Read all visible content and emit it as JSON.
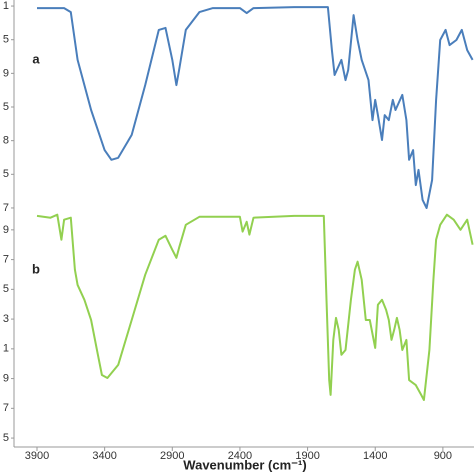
{
  "chart_data": [
    {
      "type": "line",
      "label": "a",
      "color": "#4a7ebb",
      "x": [
        3900,
        3700,
        3650,
        3600,
        3500,
        3400,
        3350,
        3300,
        3200,
        3100,
        3000,
        2950,
        2900,
        2870,
        2850,
        2800,
        2700,
        2600,
        2400,
        2350,
        2300,
        2000,
        1750,
        1720,
        1700,
        1650,
        1620,
        1600,
        1560,
        1530,
        1500,
        1450,
        1420,
        1400,
        1380,
        1350,
        1330,
        1300,
        1270,
        1250,
        1200,
        1170,
        1150,
        1120,
        1100,
        1080,
        1050,
        1020,
        980,
        950,
        920,
        880,
        850,
        800,
        760,
        720,
        680
      ],
      "values": [
        5.94,
        5.94,
        5.82,
        4.4,
        2.91,
        1.72,
        1.43,
        1.49,
        2.17,
        3.65,
        5.29,
        5.35,
        4.4,
        3.65,
        4.1,
        5.29,
        5.82,
        5.94,
        5.94,
        5.79,
        5.94,
        5.97,
        5.97,
        4.69,
        3.95,
        4.4,
        3.8,
        4.1,
        5.73,
        4.99,
        4.4,
        3.8,
        2.61,
        3.21,
        2.76,
        2.02,
        2.76,
        2.61,
        3.21,
        2.91,
        3.36,
        2.61,
        1.43,
        1.72,
        0.68,
        1.13,
        0.24,
        0,
        0.83,
        3.21,
        4.99,
        5.29,
        4.84,
        4.99,
        5.29,
        4.69,
        4.4
      ],
      "xlim": [
        4070,
        670
      ],
      "ylim": [
        -0.12,
        6.15
      ],
      "yticks": [
        {
          "value": 6,
          "label": "1"
        },
        {
          "value": 5,
          "label": "5"
        },
        {
          "value": 4,
          "label": "9"
        },
        {
          "value": 3,
          "label": "5"
        },
        {
          "value": 2,
          "label": "8"
        },
        {
          "value": 1,
          "label": "5"
        },
        {
          "value": 0,
          "label": "7"
        }
      ]
    },
    {
      "type": "line",
      "label": "b",
      "color": "#92d050",
      "x": [
        3900,
        3800,
        3750,
        3720,
        3700,
        3650,
        3620,
        3600,
        3550,
        3500,
        3450,
        3420,
        3380,
        3300,
        3200,
        3100,
        3000,
        2950,
        2900,
        2870,
        2850,
        2800,
        2700,
        2400,
        2380,
        2350,
        2330,
        2300,
        2000,
        1780,
        1760,
        1740,
        1730,
        1710,
        1690,
        1670,
        1650,
        1620,
        1580,
        1550,
        1530,
        1500,
        1470,
        1440,
        1400,
        1380,
        1350,
        1320,
        1300,
        1280,
        1260,
        1240,
        1220,
        1200,
        1170,
        1150,
        1100,
        1060,
        1040,
        1000,
        970,
        950,
        920,
        870,
        820,
        770,
        720,
        680
      ],
      "values": [
        7.47,
        7.41,
        7.51,
        6.67,
        7.34,
        7.41,
        5.66,
        5.15,
        4.65,
        3.97,
        2.8,
        2.12,
        2.02,
        2.46,
        3.97,
        5.49,
        6.67,
        6.8,
        6.33,
        6.06,
        6.4,
        7.17,
        7.44,
        7.44,
        6.94,
        7.27,
        6.84,
        7.41,
        7.47,
        7.47,
        4.65,
        1.95,
        1.45,
        3.3,
        4.04,
        3.64,
        2.8,
        2.96,
        4.65,
        5.66,
        5.93,
        5.32,
        3.97,
        3.97,
        3.03,
        4.48,
        4.65,
        4.31,
        3.97,
        3.3,
        3.64,
        4.04,
        3.64,
        2.96,
        3.3,
        1.95,
        1.78,
        1.45,
        1.28,
        2.96,
        5.32,
        6.67,
        7.17,
        7.51,
        7.34,
        7.0,
        7.34,
        6.5
      ],
      "xlim": [
        4070,
        670
      ],
      "ylim": [
        -0.3,
        7.6
      ],
      "yticks": [
        {
          "value": 7,
          "label": "9"
        },
        {
          "value": 6,
          "label": "7"
        },
        {
          "value": 5,
          "label": "5"
        },
        {
          "value": 4,
          "label": "3"
        },
        {
          "value": 3,
          "label": "1"
        },
        {
          "value": 2,
          "label": "9"
        },
        {
          "value": 1,
          "label": "7"
        },
        {
          "value": 0,
          "label": "5"
        }
      ],
      "xticks": [
        3900,
        3400,
        2900,
        2400,
        1900,
        1400,
        900
      ],
      "x_label": "Wavenumber (cm⁻¹)"
    }
  ]
}
